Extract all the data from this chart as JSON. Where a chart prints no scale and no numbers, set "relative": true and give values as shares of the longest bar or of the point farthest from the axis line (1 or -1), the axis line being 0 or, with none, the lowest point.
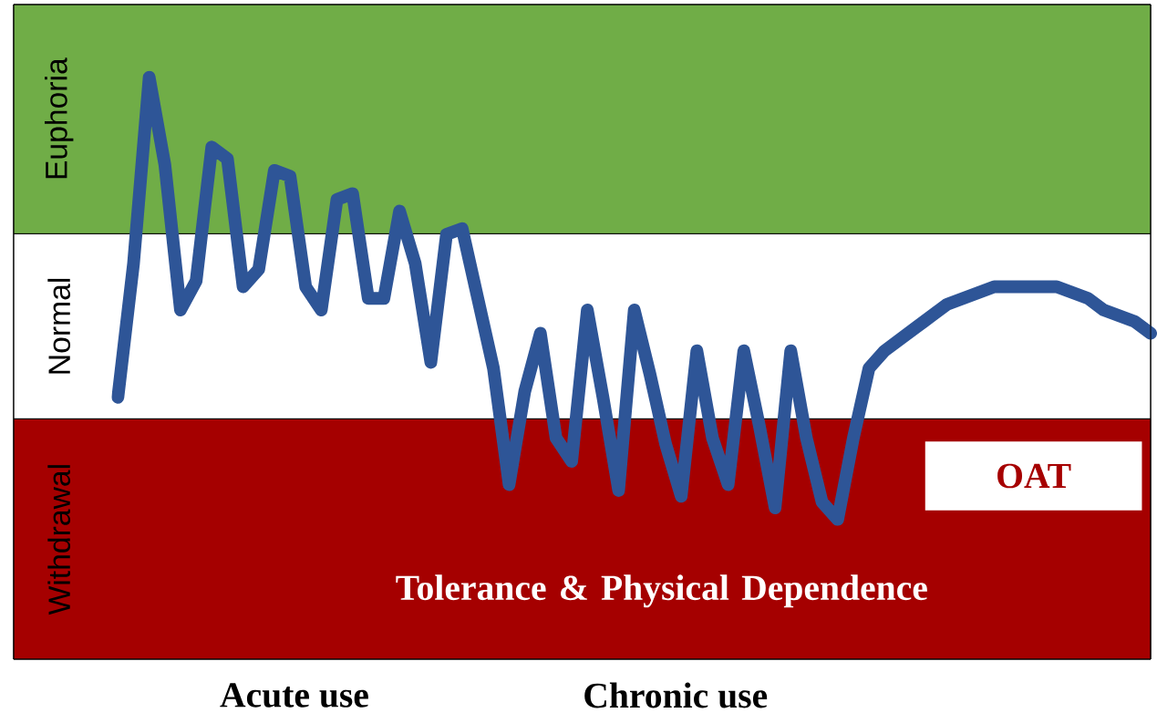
{
  "chart_data": {
    "type": "line",
    "relative": true,
    "marker": "none",
    "line_style": "solid",
    "categories": [
      null,
      null,
      null,
      null,
      null,
      null,
      null,
      null,
      null,
      null,
      null,
      null,
      null,
      null,
      null,
      null,
      null,
      null,
      null,
      null,
      null,
      null,
      null,
      null,
      null,
      null,
      null,
      null,
      null,
      null,
      null,
      null,
      null,
      null,
      null,
      null,
      null,
      null,
      null,
      null,
      null,
      null,
      null,
      null,
      null,
      null,
      null,
      null,
      null,
      null,
      null,
      null,
      null,
      null,
      null,
      null,
      null,
      null,
      null,
      null,
      null,
      null,
      null,
      null,
      null,
      null,
      null
    ],
    "series": [
      {
        "color": "#2e5597",
        "values": [
          0.45,
          0.68,
          1.0,
          0.85,
          0.6,
          0.65,
          0.88,
          0.86,
          0.64,
          0.67,
          0.84,
          0.83,
          0.64,
          0.6,
          0.79,
          0.8,
          0.62,
          0.62,
          0.77,
          0.68,
          0.51,
          0.73,
          0.74,
          0.62,
          0.5,
          0.3,
          0.46,
          0.56,
          0.38,
          0.34,
          0.6,
          0.45,
          0.29,
          0.6,
          0.49,
          0.37,
          0.28,
          0.53,
          0.38,
          0.3,
          0.53,
          0.4,
          0.26,
          0.53,
          0.38,
          0.27,
          0.24,
          0.38,
          0.5,
          0.53,
          0.55,
          0.57,
          0.59,
          0.61,
          0.62,
          0.63,
          0.64,
          0.64,
          0.64,
          0.64,
          0.64,
          0.63,
          0.62,
          0.6,
          0.59,
          0.58,
          0.56
        ]
      }
    ],
    "bands": [
      {
        "axis": "y",
        "from": 0.731,
        "to": 1.125,
        "label": "Euphoria",
        "color": "#70ad47"
      },
      {
        "axis": "y",
        "from": 0.413,
        "to": 0.731,
        "label": "Normal",
        "color": "#ffffff"
      },
      {
        "axis": "y",
        "from": 0,
        "to": 0.413,
        "label": "Withdrawal",
        "color": "#a50000"
      }
    ],
    "annotations": [
      "OAT",
      "Tolerance & Physical Dependence",
      "Acute use",
      "Chronic use"
    ]
  }
}
